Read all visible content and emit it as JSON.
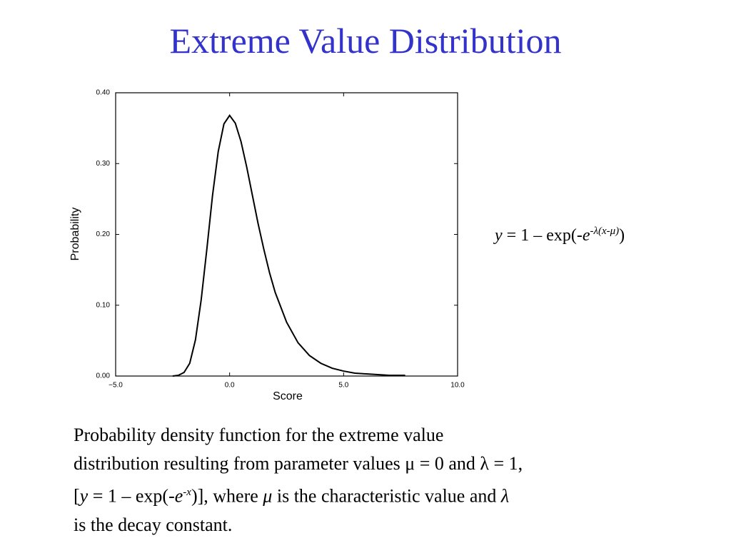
{
  "title": "Extreme Value Distribution",
  "formula": [
    "y",
    " = 1 – exp(-",
    "e",
    "-λ(x-μ)",
    ")"
  ],
  "caption": {
    "line1": "Probability density function for the extreme value",
    "line2": "distribution resulting from parameter values μ = 0 and λ = 1,",
    "line3": [
      "[",
      "y",
      " = 1 – exp(-",
      "e",
      "-x",
      ")], where ",
      "μ",
      " is the characteristic value and ",
      "λ"
    ],
    "line4": "is the decay constant."
  },
  "chart_data": {
    "type": "line",
    "x_label": "Score",
    "y_label": "Probability",
    "color": "#000000",
    "x": [
      -2.5,
      -2.25,
      -2,
      -1.75,
      -1.5,
      -1.25,
      -1,
      -0.75,
      -0.5,
      -0.25,
      0,
      0.25,
      0.5,
      0.75,
      1,
      1.25,
      1.5,
      1.75,
      2,
      2.5,
      3,
      3.5,
      4,
      4.5,
      5,
      5.5,
      6,
      7,
      7.7
    ],
    "values": [
      0.0,
      0.001,
      0.005,
      0.018,
      0.051,
      0.107,
      0.179,
      0.255,
      0.317,
      0.356,
      0.368,
      0.357,
      0.331,
      0.295,
      0.255,
      0.215,
      0.179,
      0.146,
      0.118,
      0.076,
      0.047,
      0.029,
      0.018,
      0.011,
      0.007,
      0.004,
      0.003,
      0.001,
      0.001
    ],
    "xlim": [
      -5,
      10
    ],
    "xticks": [
      {
        "value": -5,
        "label": "−5.0"
      },
      {
        "value": 0,
        "label": "0.0"
      },
      {
        "value": 5,
        "label": "5.0"
      },
      {
        "value": 10,
        "label": "10.0"
      }
    ],
    "ylim": [
      0,
      0.4
    ],
    "yticks": [
      {
        "value": 0,
        "label": "0.00"
      },
      {
        "value": 0.1,
        "label": "0.10"
      },
      {
        "value": 0.2,
        "label": "0.20"
      },
      {
        "value": 0.3,
        "label": "0.30"
      },
      {
        "value": 0.4,
        "label": "0.40"
      }
    ]
  }
}
